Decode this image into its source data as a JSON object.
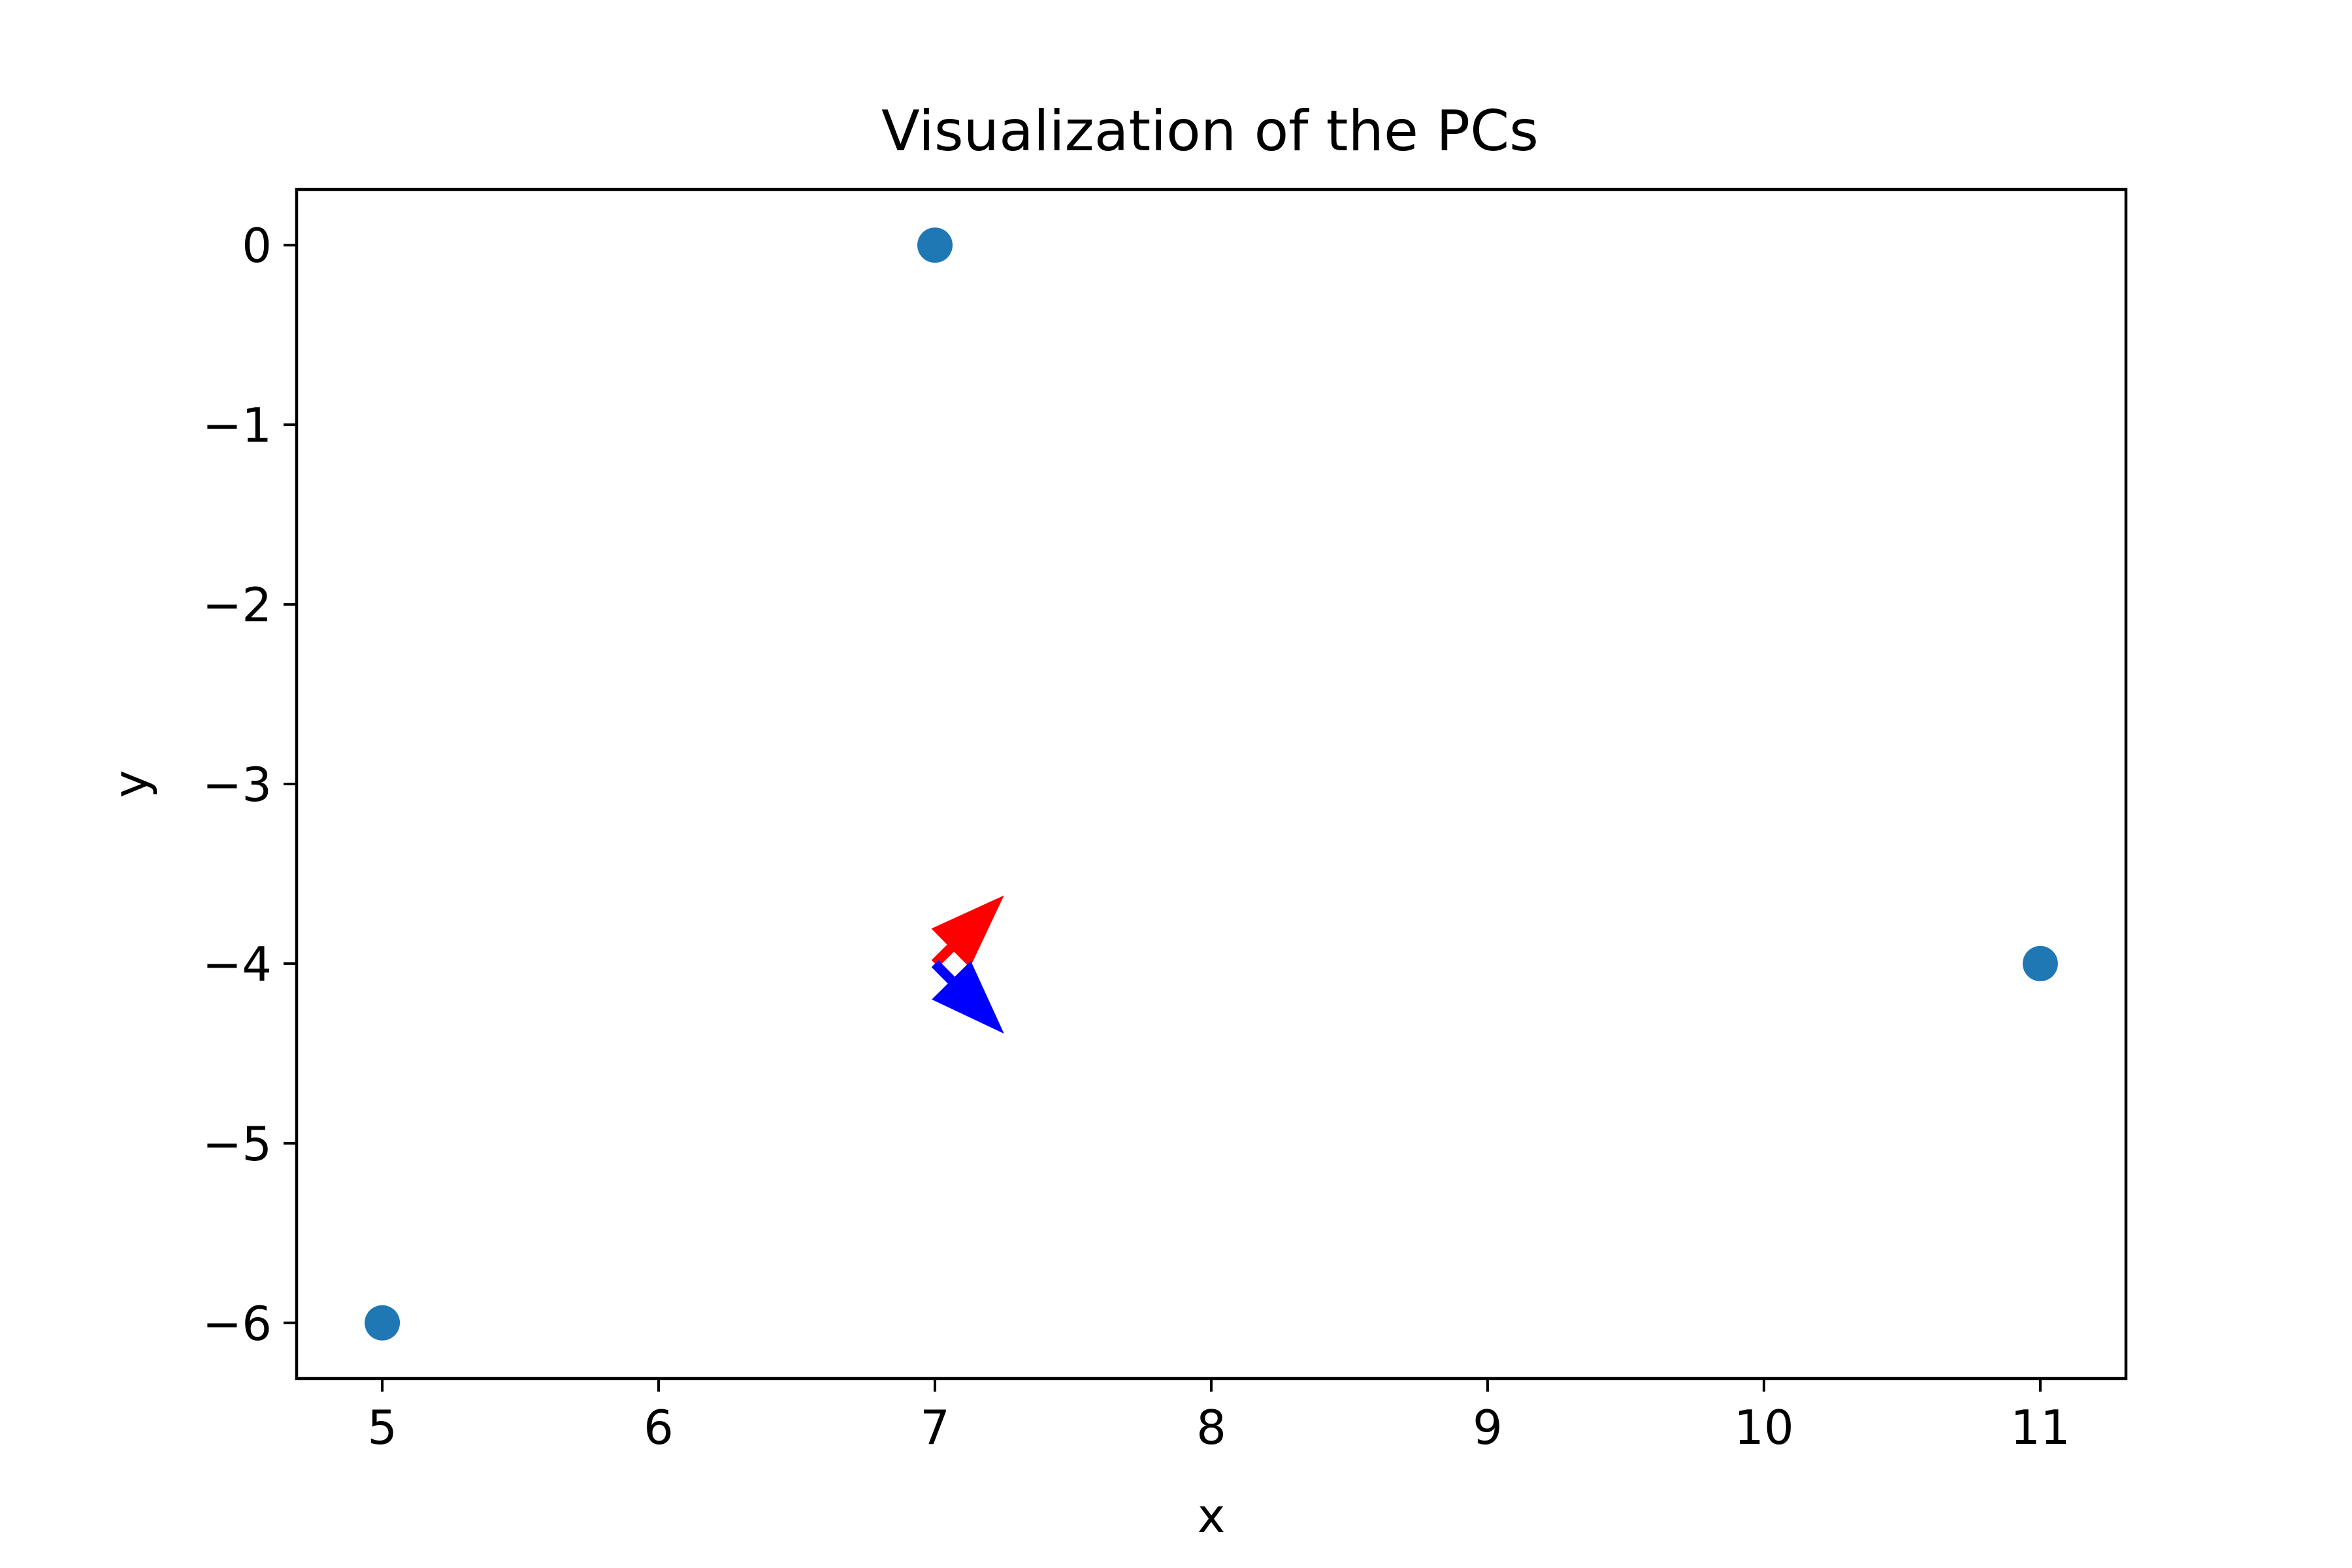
{
  "chart_data": {
    "type": "scatter",
    "title": "Visualization of the PCs",
    "xlabel": "x",
    "ylabel": "y",
    "xlim": [
      4.69,
      11.31
    ],
    "ylim": [
      -6.31,
      0.31
    ],
    "xticks": [
      5,
      6,
      7,
      8,
      9,
      10,
      11
    ],
    "yticks": [
      0,
      -1,
      -2,
      -3,
      -4,
      -5,
      -6
    ],
    "grid": false,
    "legend": "none",
    "series": [
      {
        "color": "#1f77b4",
        "points": [
          {
            "x": 7,
            "y": 0
          },
          {
            "x": 11,
            "y": -4
          },
          {
            "x": 5,
            "y": -6
          }
        ]
      }
    ],
    "arrows": [
      {
        "x": 7,
        "y": -4,
        "dx": 0.25,
        "dy": 0.38,
        "color": "#ff0000"
      },
      {
        "x": 7,
        "y": -4,
        "dx": 0.25,
        "dy": -0.39,
        "color": "#0000ff"
      }
    ]
  }
}
